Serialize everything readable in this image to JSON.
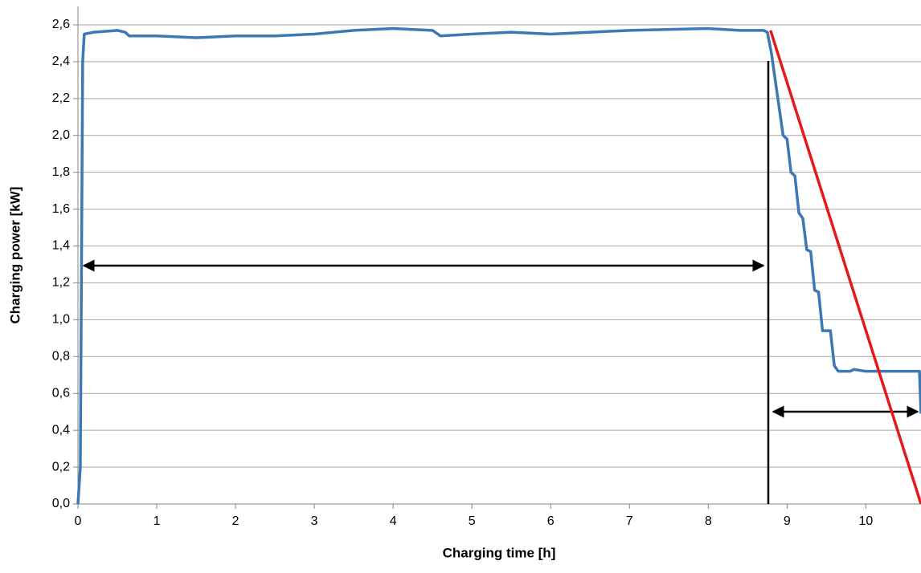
{
  "chart_data": {
    "type": "line",
    "x_label": "Charging time [h]",
    "y_label": "Charging power [kW]",
    "xlim": [
      0,
      10.7
    ],
    "ylim": [
      0,
      2.7
    ],
    "xticks": [
      0,
      1,
      2,
      3,
      4,
      5,
      6,
      7,
      8,
      9,
      10
    ],
    "yticks": [
      {
        "value": 0,
        "label": "0,0"
      },
      {
        "value": 0.2,
        "label": "0,2"
      },
      {
        "value": 0.4,
        "label": "0,4"
      },
      {
        "value": 0.6,
        "label": "0,6"
      },
      {
        "value": 0.8,
        "label": "0,8"
      },
      {
        "value": 1.0,
        "label": "1,0"
      },
      {
        "value": 1.2,
        "label": "1,2"
      },
      {
        "value": 1.4,
        "label": "1,4"
      },
      {
        "value": 1.6,
        "label": "1,6"
      },
      {
        "value": 1.8,
        "label": "1,8"
      },
      {
        "value": 2.0,
        "label": "2,0"
      },
      {
        "value": 2.2,
        "label": "2,2"
      },
      {
        "value": 2.4,
        "label": "2,4"
      },
      {
        "value": 2.6,
        "label": "2,6"
      }
    ],
    "grid": true,
    "series": [
      {
        "color": "#3b78b5",
        "x": [
          0,
          0.03,
          0.06,
          0.08,
          0.2,
          0.5,
          0.6,
          0.65,
          1,
          1.5,
          2,
          2.5,
          3,
          3.5,
          4,
          4.5,
          4.6,
          5,
          5.5,
          6,
          7,
          8,
          8.4,
          8.7,
          8.75,
          8.8,
          8.85,
          8.9,
          8.95,
          9.0,
          9.05,
          9.1,
          9.15,
          9.2,
          9.25,
          9.3,
          9.35,
          9.4,
          9.45,
          9.55,
          9.6,
          9.65,
          9.8,
          9.85,
          10,
          10.68,
          10.7
        ],
        "values": [
          0,
          0.2,
          2.4,
          2.55,
          2.56,
          2.57,
          2.56,
          2.54,
          2.54,
          2.53,
          2.54,
          2.54,
          2.55,
          2.57,
          2.58,
          2.57,
          2.54,
          2.55,
          2.56,
          2.55,
          2.57,
          2.58,
          2.57,
          2.57,
          2.56,
          2.45,
          2.3,
          2.15,
          2.0,
          1.98,
          1.8,
          1.78,
          1.58,
          1.55,
          1.38,
          1.37,
          1.16,
          1.15,
          0.94,
          0.94,
          0.75,
          0.72,
          0.72,
          0.73,
          0.72,
          0.72,
          0.49
        ]
      },
      {
        "color": "#e31a1c",
        "x": [
          8.79,
          10.7
        ],
        "values": [
          2.57,
          0
        ]
      }
    ]
  }
}
